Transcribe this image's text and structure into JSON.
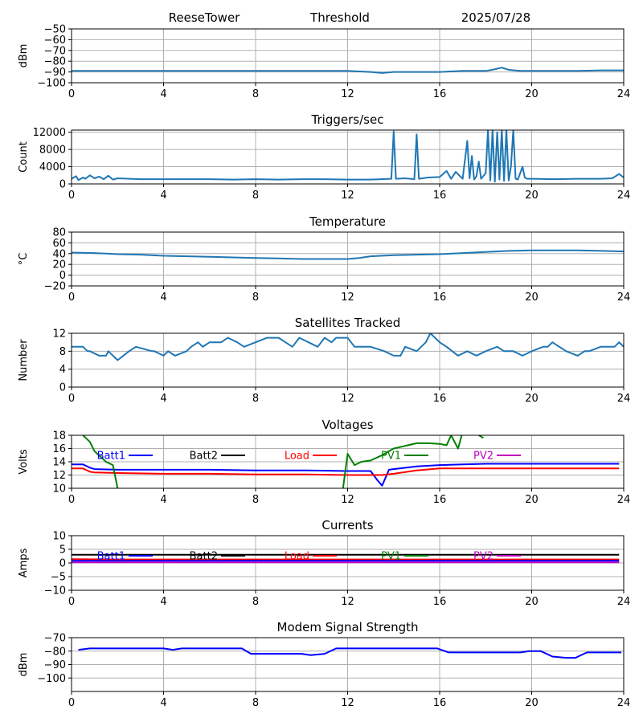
{
  "header": {
    "site": "ReeseTower",
    "mode": "Threshold",
    "date": "2025/07/28"
  },
  "colors": {
    "default": "#1f77b4",
    "batt1": "#0000ff",
    "batt2": "#000000",
    "load": "#ff0000",
    "pv1": "#008000",
    "pv2": "#bf00bf",
    "grid": "#b0b0b0"
  },
  "chart_data": [
    {
      "id": "threshold",
      "type": "line",
      "title": "",
      "xlabel": "",
      "ylabel": "dBm",
      "xlim": [
        0,
        24
      ],
      "ylim": [
        -100,
        -50
      ],
      "xticks": [
        "0",
        "4",
        "8",
        "12",
        "16",
        "20",
        "24"
      ],
      "yticks": [
        "−50",
        "−60",
        "−70",
        "−80",
        "−90",
        "−100"
      ],
      "grid": true,
      "series": [
        {
          "color": "#1f77b4",
          "x": [
            0,
            2,
            4,
            6,
            8,
            10,
            12,
            13,
            13.5,
            14,
            15,
            16,
            17,
            18,
            18.3,
            18.7,
            19,
            19.5,
            20,
            21,
            22,
            23,
            24
          ],
          "y": [
            -89,
            -89,
            -89,
            -89,
            -89,
            -89,
            -89,
            -90,
            -91,
            -90,
            -90,
            -90,
            -89,
            -89,
            -88,
            -86,
            -88,
            -89,
            -89,
            -89,
            -89,
            -88.5,
            -88.5
          ]
        }
      ]
    },
    {
      "id": "triggers",
      "type": "line",
      "title": "Triggers/sec",
      "xlabel": "",
      "ylabel": "Count",
      "xlim": [
        0,
        24
      ],
      "ylim": [
        0,
        12500
      ],
      "xticks": [
        "0",
        "4",
        "8",
        "12",
        "16",
        "20",
        "24"
      ],
      "yticks": [
        "0",
        "4000",
        "8000",
        "12000"
      ],
      "grid": true,
      "series": [
        {
          "color": "#1f77b4",
          "x": [
            0,
            0.2,
            0.3,
            0.5,
            0.6,
            0.8,
            1,
            1.2,
            1.4,
            1.6,
            1.8,
            2,
            2.5,
            3,
            4,
            5,
            6,
            7,
            8,
            9,
            10,
            11,
            12,
            13,
            13.9,
            14,
            14.1,
            14.5,
            14.9,
            15,
            15.1,
            15.5,
            16,
            16.3,
            16.5,
            16.7,
            17,
            17.2,
            17.3,
            17.4,
            17.5,
            17.6,
            17.7,
            17.8,
            18,
            18.1,
            18.2,
            18.3,
            18.4,
            18.5,
            18.6,
            18.7,
            18.8,
            18.9,
            19,
            19.1,
            19.2,
            19.3,
            19.4,
            19.6,
            19.7,
            19.8,
            20,
            21,
            22,
            23,
            23.5,
            23.8,
            24
          ],
          "y": [
            1200,
            1800,
            900,
            1500,
            1200,
            2000,
            1300,
            1700,
            1100,
            1900,
            1000,
            1300,
            1200,
            1100,
            1100,
            1100,
            1100,
            1000,
            1100,
            1000,
            1100,
            1100,
            1000,
            1000,
            1200,
            12200,
            1200,
            1300,
            1100,
            11500,
            1200,
            1500,
            1600,
            3000,
            1200,
            2800,
            1200,
            10000,
            1300,
            6500,
            1000,
            1800,
            5200,
            1200,
            2500,
            12500,
            800,
            12500,
            500,
            12000,
            1000,
            12500,
            700,
            12500,
            800,
            4000,
            12500,
            1200,
            1000,
            4000,
            1500,
            1200,
            1200,
            1100,
            1200,
            1200,
            1300,
            2300,
            1500
          ]
        }
      ]
    },
    {
      "id": "temperature",
      "type": "line",
      "title": "Temperature",
      "xlabel": "",
      "ylabel": "°C",
      "xlim": [
        0,
        24
      ],
      "ylim": [
        -20,
        80
      ],
      "xticks": [
        "0",
        "4",
        "8",
        "12",
        "16",
        "20",
        "24"
      ],
      "yticks": [
        "−20",
        "0",
        "20",
        "40",
        "60",
        "80"
      ],
      "grid": true,
      "series": [
        {
          "color": "#1f77b4",
          "x": [
            0,
            1,
            2,
            3,
            4,
            5,
            6,
            7,
            8,
            9,
            10,
            11,
            12,
            12.5,
            13,
            14,
            15,
            16,
            17,
            18,
            19,
            20,
            21,
            22,
            23,
            24
          ],
          "y": [
            42,
            41,
            39,
            38,
            36,
            35,
            34,
            33,
            32,
            31,
            30,
            30,
            30,
            32,
            35,
            37,
            38,
            39,
            41,
            43,
            45,
            46,
            46,
            46,
            45,
            44
          ]
        }
      ]
    },
    {
      "id": "satellites",
      "type": "line",
      "title": "Satellites Tracked",
      "xlabel": "",
      "ylabel": "Number",
      "xlim": [
        0,
        24
      ],
      "ylim": [
        0,
        12
      ],
      "xticks": [
        "0",
        "4",
        "8",
        "12",
        "16",
        "20",
        "24"
      ],
      "yticks": [
        "0",
        "4",
        "8",
        "12"
      ],
      "grid": true,
      "series": [
        {
          "color": "#1f77b4",
          "x": [
            0,
            0.5,
            0.7,
            0.8,
            1.2,
            1.5,
            1.6,
            1.8,
            2,
            2.5,
            2.8,
            3.5,
            3.6,
            4,
            4.2,
            4.5,
            5,
            5.2,
            5.5,
            5.7,
            6,
            6.5,
            6.8,
            7.2,
            7.5,
            8,
            8.5,
            9,
            9.3,
            9.6,
            9.9,
            10.3,
            10.7,
            11,
            11.3,
            11.5,
            12,
            12.3,
            13,
            13.6,
            14,
            14.3,
            14.5,
            15,
            15.4,
            15.6,
            16,
            16.3,
            16.8,
            17.2,
            17.6,
            18,
            18.5,
            18.8,
            19.2,
            19.6,
            20,
            20.5,
            20.7,
            20.9,
            21.2,
            21.5,
            22,
            22.3,
            22.5,
            23,
            23.6,
            23.8,
            24
          ],
          "y": [
            9,
            9,
            8,
            8,
            7,
            7,
            8,
            7,
            6,
            8,
            9,
            8,
            8,
            7,
            8,
            7,
            8,
            9,
            10,
            9,
            10,
            10,
            11,
            10,
            9,
            10,
            11,
            11,
            10,
            9,
            11,
            10,
            9,
            11,
            10,
            11,
            11,
            9,
            9,
            8,
            7,
            7,
            9,
            8,
            10,
            12,
            10,
            9,
            7,
            8,
            7,
            8,
            9,
            8,
            8,
            7,
            8,
            9,
            9,
            10,
            9,
            8,
            7,
            8,
            8,
            9,
            9,
            10,
            9
          ]
        }
      ]
    },
    {
      "id": "voltages",
      "type": "line",
      "title": "Voltages",
      "xlabel": "",
      "ylabel": "Volts",
      "xlim": [
        0,
        24
      ],
      "ylim": [
        10,
        18
      ],
      "xticks": [
        "0",
        "4",
        "8",
        "12",
        "16",
        "20",
        "24"
      ],
      "yticks": [
        "10",
        "12",
        "14",
        "16",
        "18"
      ],
      "grid": true,
      "legend": [
        "Batt1",
        "Batt2",
        "Load",
        "PV1",
        "PV2"
      ],
      "series": [
        {
          "name": "Batt1",
          "color": "#0000ff",
          "x": [
            0,
            0.5,
            0.8,
            1,
            2,
            4,
            6,
            8,
            10,
            12,
            13,
            13.3,
            13.5,
            13.8,
            14,
            15,
            16,
            17,
            18,
            19,
            20,
            21,
            22,
            23,
            23.8
          ],
          "y": [
            13.6,
            13.6,
            13.1,
            12.9,
            12.8,
            12.8,
            12.8,
            12.7,
            12.7,
            12.6,
            12.6,
            11.2,
            10.4,
            12.8,
            12.9,
            13.3,
            13.5,
            13.6,
            13.7,
            13.7,
            13.7,
            13.7,
            13.7,
            13.7,
            13.7
          ]
        },
        {
          "name": "Load",
          "color": "#ff0000",
          "x": [
            0,
            0.5,
            0.8,
            1,
            2,
            4,
            6,
            8,
            10,
            12,
            13,
            13.5,
            14,
            15,
            16,
            17,
            18,
            19,
            20,
            21,
            22,
            23,
            23.8
          ],
          "y": [
            13.0,
            13.0,
            12.5,
            12.4,
            12.3,
            12.2,
            12.2,
            12.1,
            12.1,
            12.0,
            12.0,
            12.0,
            12.2,
            12.7,
            13.0,
            13.0,
            13.0,
            13.0,
            13.0,
            13.0,
            13.0,
            13.0,
            13.0
          ]
        },
        {
          "name": "PV1",
          "color": "#008000",
          "x": [
            0.5,
            0.8,
            1,
            1.5,
            1.8,
            2,
            2.5
          ],
          "y": [
            18,
            17,
            15.6,
            14,
            13.5,
            10,
            8
          ]
        },
        {
          "name": "PV1",
          "color": "#008000",
          "x": [
            11.8,
            12,
            12.3,
            12.6,
            13,
            13.5,
            14,
            14.5,
            15,
            15.5,
            16,
            16.3,
            16.5,
            16.8,
            17,
            17.3
          ],
          "y": [
            10,
            15.2,
            13.5,
            14,
            14.2,
            15,
            16,
            16.4,
            16.8,
            16.8,
            16.7,
            16.5,
            18,
            16,
            18.5,
            19
          ]
        },
        {
          "name": "PV1",
          "color": "#008000",
          "x": [
            17.7,
            17.9
          ],
          "y": [
            18,
            17.6
          ]
        }
      ]
    },
    {
      "id": "currents",
      "type": "line",
      "title": "Currents",
      "xlabel": "",
      "ylabel": "Amps",
      "xlim": [
        0,
        24
      ],
      "ylim": [
        -10,
        10
      ],
      "xticks": [
        "0",
        "4",
        "8",
        "12",
        "16",
        "20",
        "24"
      ],
      "yticks": [
        "−10",
        "−5",
        "0",
        "5",
        "10"
      ],
      "grid": true,
      "legend": [
        "Batt1",
        "Batt2",
        "Load",
        "PV1",
        "PV2"
      ],
      "series": [
        {
          "name": "Batt2",
          "color": "#000000",
          "x": [
            0,
            2,
            4,
            6,
            8,
            10,
            12,
            14,
            16,
            18,
            20,
            22,
            23.8
          ],
          "y": [
            3,
            3,
            3,
            3,
            3,
            3,
            3,
            3,
            3,
            3,
            3,
            3,
            3
          ]
        },
        {
          "name": "Load",
          "color": "#ff0000",
          "x": [
            0,
            2,
            4,
            6,
            8,
            10,
            12,
            14,
            16,
            18,
            20,
            22,
            23.8
          ],
          "y": [
            1.4,
            1.3,
            1.3,
            1.3,
            1.3,
            1.3,
            1.3,
            1.3,
            1.3,
            1.3,
            1.3,
            1.3,
            1.3
          ]
        },
        {
          "name": "Batt1",
          "color": "#0000ff",
          "x": [
            0,
            2,
            4,
            6,
            8,
            10,
            12,
            14,
            16,
            18,
            20,
            22,
            23.8
          ],
          "y": [
            0.8,
            0.8,
            0.8,
            0.8,
            0.8,
            0.8,
            0.8,
            0.8,
            0.8,
            0.8,
            0.8,
            0.8,
            0.8
          ]
        },
        {
          "name": "PV2",
          "color": "#bf00bf",
          "x": [
            0,
            2,
            4,
            6,
            8,
            10,
            12,
            14,
            16,
            18,
            20,
            22,
            23.8
          ],
          "y": [
            0.2,
            0.2,
            0.2,
            0.2,
            0.2,
            0.2,
            0.2,
            0.2,
            0.2,
            0.2,
            0.2,
            0.2,
            0.2
          ]
        }
      ]
    },
    {
      "id": "modem",
      "type": "line",
      "title": "Modem Signal Strength",
      "xlabel": "",
      "ylabel": "dBm",
      "xlim": [
        0,
        24
      ],
      "ylim": [
        -110,
        -70
      ],
      "xticks": [
        "0",
        "4",
        "8",
        "12",
        "16",
        "20",
        "24"
      ],
      "yticks": [
        "−70",
        "−80",
        "−90",
        "−100"
      ],
      "grid": true,
      "series": [
        {
          "color": "#0000ff",
          "x": [
            0.3,
            0.8,
            2,
            3,
            4,
            4.4,
            4.8,
            6,
            7,
            7.4,
            7.8,
            8,
            9,
            10,
            10.4,
            11,
            11.5,
            12,
            13,
            14,
            15,
            15.9,
            16.4,
            17,
            18,
            19,
            19.5,
            19.9,
            20.4,
            20.9,
            21.5,
            21.9,
            22.4,
            23,
            23.9
          ],
          "y": [
            -79,
            -78,
            -78,
            -78,
            -78,
            -79,
            -78,
            -78,
            -78,
            -78,
            -82,
            -82,
            -82,
            -82,
            -83,
            -82,
            -78,
            -78,
            -78,
            -78,
            -78,
            -78,
            -81,
            -81,
            -81,
            -81,
            -81,
            -80,
            -80,
            -84,
            -85,
            -85,
            -81,
            -81,
            -81
          ]
        }
      ]
    }
  ]
}
